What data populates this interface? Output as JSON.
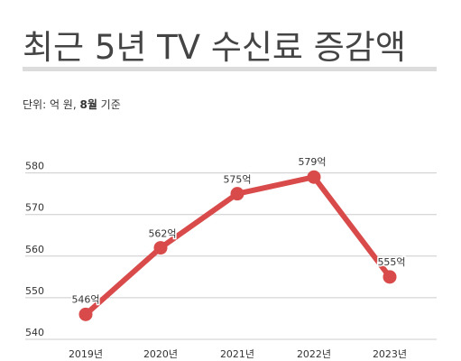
{
  "header": {
    "title": "최근 5년 TV 수신료 증감액",
    "unit_prefix": "단위: 억 원, ",
    "unit_bold": "8월",
    "unit_suffix": " 기준"
  },
  "colors": {
    "line": "#d94b4b",
    "grid": "#cccccc",
    "title_rule": "#dcdcdc"
  },
  "chart_data": {
    "type": "line",
    "title": "최근 5년 TV 수신료 증감액",
    "categories": [
      "2019년",
      "2020년",
      "2021년",
      "2022년",
      "2023년"
    ],
    "values": [
      546,
      562,
      575,
      579,
      555
    ],
    "data_labels": [
      "546억",
      "562억",
      "575억",
      "579억",
      "555억"
    ],
    "yticks": [
      540,
      550,
      560,
      570,
      580
    ],
    "ylim": [
      540,
      581
    ],
    "xlabel": "",
    "ylabel": "",
    "grid": true,
    "legend": "none"
  }
}
